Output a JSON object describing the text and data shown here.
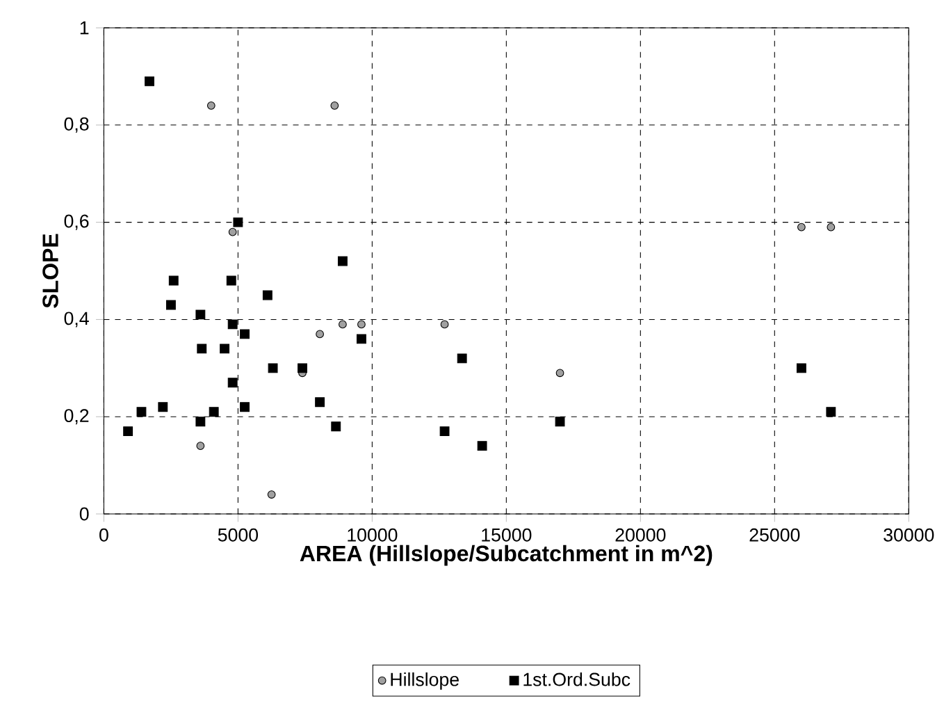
{
  "chart_data": {
    "type": "scatter",
    "xlabel": "AREA (Hillslope/Subcatchment in m^2)",
    "ylabel": "SLOPE",
    "xlim": [
      0,
      30000
    ],
    "ylim": [
      0,
      1
    ],
    "xticks": [
      0,
      5000,
      10000,
      15000,
      20000,
      25000,
      30000
    ],
    "yticks": [
      0,
      {
        "value": 0.2,
        "label": "0,2"
      },
      {
        "value": 0.4,
        "label": "0,4"
      },
      {
        "value": 0.6,
        "label": "0,6"
      },
      {
        "value": 0.8,
        "label": "0,8"
      },
      1
    ],
    "grid": true,
    "legend": "bottom",
    "series": [
      {
        "name": "Hillslope",
        "color": "#a0a0a0",
        "marker": "circle",
        "x": [
          4000,
          8600,
          4800,
          8900,
          9600,
          8050,
          7400,
          3600,
          6250,
          12700,
          17000,
          26000,
          27100
        ],
        "values": [
          0.84,
          0.84,
          0.58,
          0.39,
          0.39,
          0.37,
          0.29,
          0.14,
          0.04,
          0.39,
          0.29,
          0.59,
          0.59
        ]
      },
      {
        "name": "1st.Ord.Subc",
        "color": "#000000",
        "marker": "square",
        "x": [
          1700,
          5000,
          8900,
          2600,
          4750,
          6100,
          2500,
          3600,
          4800,
          5250,
          9600,
          3650,
          4500,
          6300,
          7400,
          4800,
          8050,
          1400,
          2200,
          4100,
          5250,
          3600,
          900,
          8650,
          12700,
          13350,
          14100,
          17000,
          26000,
          27100
        ],
        "values": [
          0.89,
          0.6,
          0.52,
          0.48,
          0.48,
          0.45,
          0.43,
          0.41,
          0.39,
          0.37,
          0.36,
          0.34,
          0.34,
          0.3,
          0.3,
          0.27,
          0.23,
          0.21,
          0.22,
          0.21,
          0.22,
          0.19,
          0.17,
          0.18,
          0.17,
          0.32,
          0.14,
          0.19,
          0.3,
          0.21
        ]
      }
    ]
  }
}
